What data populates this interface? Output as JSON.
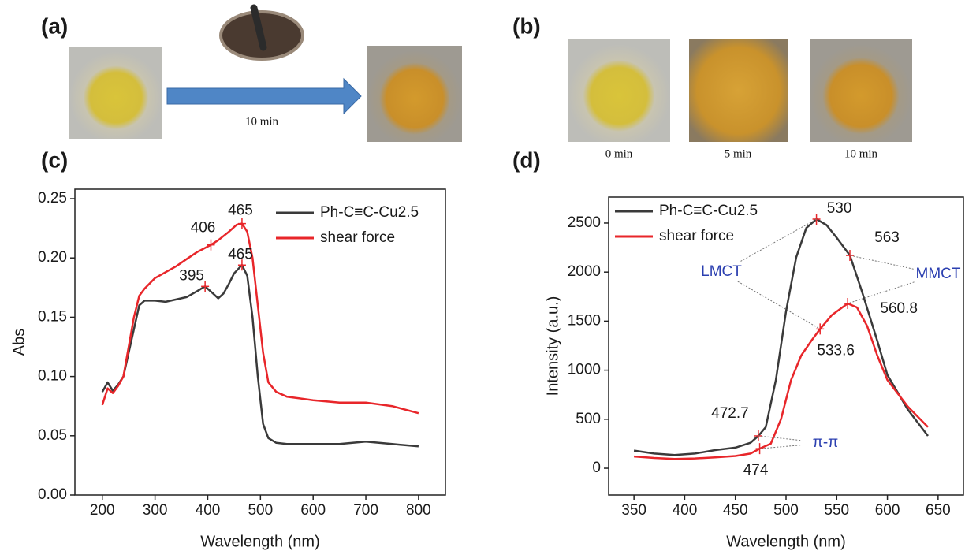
{
  "panels": {
    "a": "(a)",
    "b": "(b)",
    "c": "(c)",
    "d": "(d)",
    "arrow_label": "10 min",
    "photo_labels": [
      "0 min",
      "5 min",
      "10 min"
    ]
  },
  "chart_data": [
    {
      "type": "line",
      "xlabel": "Wavelength (nm)",
      "ylabel": "Abs",
      "xlim": [
        148,
        851
      ],
      "ylim": [
        0,
        0.258
      ],
      "xticks": [
        200,
        300,
        400,
        500,
        600,
        700,
        800
      ],
      "yticks": [
        {
          "value": 0,
          "label": "0.00"
        },
        0.05,
        {
          "value": 0.1,
          "label": "0.10"
        },
        0.15,
        {
          "value": 0.2,
          "label": "0.20"
        },
        0.25
      ],
      "series": [
        {
          "name": "Ph-C≡C-Cu2.5",
          "color": "#3a3a3a",
          "x": [
            200,
            210,
            220,
            230,
            240,
            250,
            260,
            270,
            280,
            300,
            320,
            340,
            360,
            380,
            395,
            410,
            420,
            430,
            440,
            450,
            465,
            475,
            485,
            495,
            505,
            515,
            530,
            550,
            600,
            650,
            700,
            750,
            800
          ],
          "values": [
            0.087,
            0.095,
            0.088,
            0.093,
            0.1,
            0.12,
            0.14,
            0.16,
            0.164,
            0.164,
            0.163,
            0.165,
            0.167,
            0.172,
            0.176,
            0.17,
            0.166,
            0.17,
            0.178,
            0.187,
            0.194,
            0.185,
            0.15,
            0.1,
            0.06,
            0.048,
            0.044,
            0.043,
            0.043,
            0.043,
            0.045,
            0.043,
            0.041
          ]
        },
        {
          "name": "shear force",
          "color": "#e8262a",
          "x": [
            200,
            210,
            220,
            230,
            240,
            250,
            260,
            270,
            280,
            300,
            320,
            340,
            360,
            380,
            406,
            420,
            440,
            455,
            465,
            475,
            485,
            495,
            505,
            515,
            530,
            550,
            600,
            650,
            700,
            750,
            800
          ],
          "values": [
            0.076,
            0.09,
            0.086,
            0.092,
            0.1,
            0.125,
            0.15,
            0.168,
            0.174,
            0.183,
            0.188,
            0.193,
            0.199,
            0.205,
            0.211,
            0.215,
            0.222,
            0.228,
            0.229,
            0.222,
            0.2,
            0.16,
            0.12,
            0.095,
            0.087,
            0.083,
            0.08,
            0.078,
            0.078,
            0.075,
            0.069
          ]
        }
      ],
      "annotations": [
        {
          "text": "465",
          "x": 465,
          "y": 0.229
        },
        {
          "text": "406",
          "x": 406,
          "y": 0.211
        },
        {
          "text": "465",
          "x": 465,
          "y": 0.194
        },
        {
          "text": "395",
          "x": 395,
          "y": 0.176
        }
      ]
    },
    {
      "type": "line",
      "xlabel": "Wavelength (nm)",
      "ylabel": "Intensity (a.u.)",
      "xlim": [
        325,
        675
      ],
      "ylim": [
        -273,
        2765
      ],
      "xticks": [
        350,
        400,
        450,
        500,
        550,
        600,
        650
      ],
      "yticks": [
        0,
        500,
        1000,
        1500,
        2000,
        2500
      ],
      "series": [
        {
          "name": "Ph-C≡C-Cu2.5",
          "color": "#3a3a3a",
          "x": [
            350,
            370,
            390,
            410,
            430,
            450,
            465,
            472.7,
            480,
            490,
            500,
            510,
            520,
            530,
            540,
            550,
            563,
            575,
            590,
            600,
            620,
            640
          ],
          "values": [
            180,
            150,
            135,
            150,
            185,
            210,
            260,
            330,
            420,
            900,
            1600,
            2150,
            2450,
            2540,
            2480,
            2350,
            2170,
            1800,
            1300,
            950,
            600,
            330
          ]
        },
        {
          "name": "shear force",
          "color": "#e8262a",
          "x": [
            350,
            370,
            390,
            410,
            430,
            450,
            465,
            474,
            485,
            495,
            505,
            515,
            525,
            533.6,
            545,
            560.8,
            570,
            580,
            590,
            600,
            620,
            640
          ],
          "values": [
            120,
            105,
            95,
            100,
            110,
            125,
            150,
            200,
            250,
            500,
            900,
            1150,
            1300,
            1420,
            1560,
            1680,
            1640,
            1450,
            1150,
            900,
            630,
            420
          ]
        }
      ],
      "annotations": [
        {
          "text": "530",
          "x": 530,
          "y": 2540
        },
        {
          "text": "563",
          "x": 563,
          "y": 2170
        },
        {
          "text": "560.8",
          "x": 560.8,
          "y": 1680
        },
        {
          "text": "533.6",
          "x": 533.6,
          "y": 1420
        },
        {
          "text": "472.7",
          "x": 472.7,
          "y": 330
        },
        {
          "text": "474",
          "x": 474,
          "y": 200
        }
      ],
      "labels": [
        "LMCT",
        "MMCT",
        "π-π"
      ],
      "label_color": "#2b3fb0"
    }
  ]
}
